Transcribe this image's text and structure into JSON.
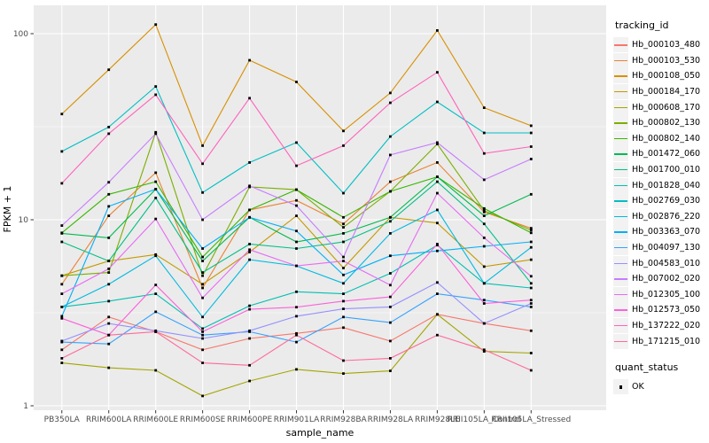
{
  "chart_data": {
    "type": "line",
    "title": "",
    "xlabel": "sample_name",
    "ylabel": "FPKM + 1",
    "y_scale": "log10",
    "ylim": [
      1,
      130
    ],
    "y_ticks": [
      1,
      10,
      100
    ],
    "y_minor_ticks": [
      3.1623,
      31.623
    ],
    "grid": true,
    "panel_background": "#EBEBEB",
    "gridline_color": "#FFFFFF",
    "tick_label_color": "#4D4D4D",
    "categories": [
      "PB350LA",
      "RRIM600LA",
      "RRIM600LE",
      "RRIM600SE",
      "RRIM600PE",
      "RRIM901LA",
      "RRIM928BA",
      "RRIM928LA",
      "RRIM928LE",
      "RRII105LA_Control",
      "RRII105LA_Stressed"
    ],
    "legend": {
      "position": "right",
      "series_title": "tracking_id",
      "marker_title": "quant_status"
    },
    "marker": {
      "shape": "square",
      "color": "#000000",
      "legend_label": "OK"
    },
    "series": [
      {
        "name": "Hb_000103_480",
        "color": "#F8766D",
        "values": [
          2.0,
          3.0,
          2.5,
          2.0,
          2.3,
          2.45,
          2.63,
          2.23,
          3.1,
          2.77,
          2.53
        ]
      },
      {
        "name": "Hb_000103_530",
        "color": "#EA8331",
        "values": [
          4.5,
          10.5,
          17.9,
          4.3,
          11.3,
          12.7,
          9.5,
          16.0,
          20.3,
          11.0,
          9.0
        ]
      },
      {
        "name": "Hb_000108_050",
        "color": "#D89000",
        "values": [
          37,
          64,
          112,
          25,
          72,
          55,
          30,
          48,
          104,
          40,
          32
        ]
      },
      {
        "name": "Hb_000184_170",
        "color": "#C49A00",
        "values": [
          5.0,
          6.0,
          6.5,
          4.5,
          6.7,
          10.5,
          5.5,
          10.3,
          9.6,
          5.6,
          6.1
        ]
      },
      {
        "name": "Hb_000608_170",
        "color": "#A3A500",
        "values": [
          1.7,
          1.6,
          1.55,
          1.13,
          1.36,
          1.57,
          1.49,
          1.54,
          3.1,
          1.96,
          1.92
        ]
      },
      {
        "name": "Hb_000802_130",
        "color": "#7CAE00",
        "values": [
          5.0,
          5.2,
          29.5,
          5.0,
          15.0,
          14.5,
          9.1,
          14.2,
          25.5,
          11.2,
          8.8
        ]
      },
      {
        "name": "Hb_000802_140",
        "color": "#39B600",
        "values": [
          8.5,
          13.7,
          16.0,
          6.3,
          11.3,
          14.5,
          10.3,
          14.2,
          17.0,
          11.5,
          8.5
        ]
      },
      {
        "name": "Hb_001472_060",
        "color": "#00BB4E",
        "values": [
          8.45,
          8.0,
          14.6,
          6.0,
          10.3,
          7.6,
          8.45,
          10.3,
          17.0,
          10.5,
          13.7
        ]
      },
      {
        "name": "Hb_001700_010",
        "color": "#00C087",
        "values": [
          7.6,
          6.0,
          13.1,
          5.2,
          7.4,
          7.0,
          7.6,
          9.8,
          16.0,
          9.5,
          4.55
        ]
      },
      {
        "name": "Hb_001828_040",
        "color": "#00C0B2",
        "values": [
          3.4,
          3.65,
          4.0,
          2.6,
          3.45,
          4.1,
          4.0,
          5.15,
          7.3,
          4.55,
          4.3
        ]
      },
      {
        "name": "Hb_002769_030",
        "color": "#00BFC4",
        "values": [
          23.3,
          31.5,
          52,
          14,
          20.3,
          26,
          13.9,
          28,
          43,
          29.3,
          29.3
        ]
      },
      {
        "name": "Hb_002876_220",
        "color": "#00BAE0",
        "values": [
          3.4,
          4.5,
          6.4,
          3.0,
          6.1,
          5.65,
          4.55,
          8.45,
          11.3,
          4.55,
          7.1
        ]
      },
      {
        "name": "Hb_003363_070",
        "color": "#00B0F6",
        "values": [
          3.03,
          11.8,
          14.6,
          7.0,
          10.3,
          8.7,
          5.05,
          6.4,
          6.8,
          7.2,
          7.6
        ]
      },
      {
        "name": "Hb_004097_130",
        "color": "#35A2FF",
        "values": [
          2.2,
          2.15,
          3.2,
          2.4,
          2.5,
          2.2,
          3.0,
          2.8,
          4.0,
          3.7,
          3.4
        ]
      },
      {
        "name": "Hb_004583_010",
        "color": "#9590FF",
        "values": [
          2.23,
          2.77,
          2.53,
          2.3,
          2.53,
          3.03,
          3.32,
          3.4,
          4.6,
          2.77,
          3.55
        ]
      },
      {
        "name": "Hb_007002_020",
        "color": "#C77CFF",
        "values": [
          9.3,
          15.9,
          29.0,
          10.0,
          15.2,
          11.9,
          6.3,
          22.3,
          26.0,
          16.4,
          21.2
        ]
      },
      {
        "name": "Hb_012305_100",
        "color": "#E76BF3",
        "values": [
          4.0,
          5.45,
          10.1,
          3.8,
          6.9,
          5.65,
          6.0,
          4.45,
          13.9,
          8.0,
          4.97
        ]
      },
      {
        "name": "Hb_012573_050",
        "color": "#FA62DB",
        "values": [
          2.95,
          2.4,
          4.46,
          2.5,
          3.3,
          3.39,
          3.65,
          3.85,
          7.4,
          3.55,
          3.7
        ]
      },
      {
        "name": "Hb_137222_020",
        "color": "#FF62BC",
        "values": [
          15.7,
          29,
          47,
          20,
          45,
          19.5,
          25,
          42.5,
          62,
          22.7,
          24.7
        ]
      },
      {
        "name": "Hb_171215_010",
        "color": "#FF6A98",
        "values": [
          1.8,
          2.4,
          2.5,
          1.7,
          1.65,
          2.4,
          1.75,
          1.8,
          2.4,
          2.0,
          1.55
        ]
      }
    ]
  }
}
